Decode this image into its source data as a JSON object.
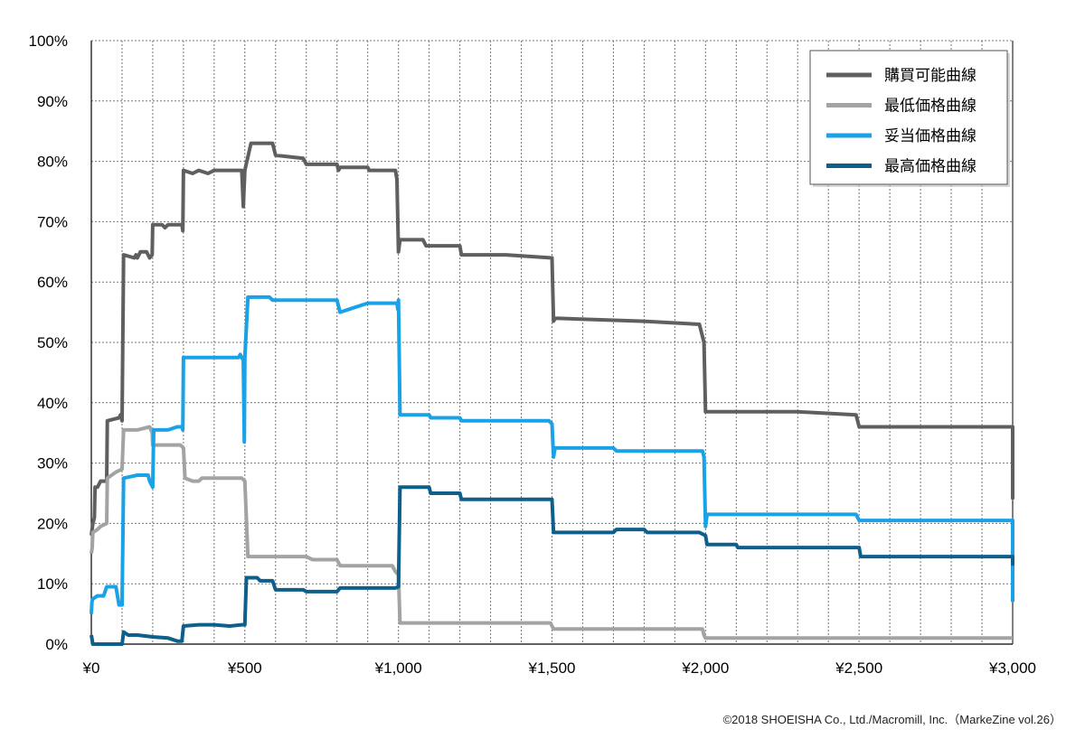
{
  "chart_data": {
    "type": "line",
    "xlim": [
      0,
      3000
    ],
    "ylim": [
      0,
      100
    ],
    "x_ticks": [
      0,
      100,
      200,
      300,
      400,
      500,
      600,
      700,
      800,
      900,
      1000,
      1100,
      1200,
      1300,
      1400,
      1500,
      1600,
      1700,
      1800,
      1900,
      2000,
      2100,
      2200,
      2300,
      2400,
      2500,
      2600,
      2700,
      2800,
      2900,
      3000
    ],
    "x_tick_labels": [
      "¥0",
      "¥500",
      "¥1,000",
      "¥1,500",
      "¥2,000",
      "¥2,500",
      "¥3,000"
    ],
    "x_tick_label_values": [
      0,
      500,
      1000,
      1500,
      2000,
      2500,
      3000
    ],
    "y_ticks": [
      0,
      10,
      20,
      30,
      40,
      50,
      60,
      70,
      80,
      90,
      100
    ],
    "y_tick_labels": [
      "0%",
      "10%",
      "20%",
      "30%",
      "40%",
      "50%",
      "60%",
      "70%",
      "80%",
      "90%",
      "100%"
    ],
    "grid": true,
    "legend_position": "top-right",
    "series": [
      {
        "name": "購買可能曲線",
        "color": "#5f5f5f",
        "points": [
          [
            0,
            18
          ],
          [
            5,
            20
          ],
          [
            10,
            21
          ],
          [
            12,
            26
          ],
          [
            20,
            26
          ],
          [
            30,
            27
          ],
          [
            50,
            27
          ],
          [
            52,
            37
          ],
          [
            90,
            37.5
          ],
          [
            95,
            38
          ],
          [
            100,
            37
          ],
          [
            105,
            64.5
          ],
          [
            140,
            64
          ],
          [
            145,
            64.5
          ],
          [
            150,
            64
          ],
          [
            160,
            65
          ],
          [
            180,
            65
          ],
          [
            190,
            64
          ],
          [
            198,
            64.5
          ],
          [
            200,
            69.5
          ],
          [
            230,
            69.5
          ],
          [
            240,
            69
          ],
          [
            250,
            69.5
          ],
          [
            295,
            69.5
          ],
          [
            298,
            68.5
          ],
          [
            300,
            78.5
          ],
          [
            330,
            78
          ],
          [
            350,
            78.5
          ],
          [
            380,
            78
          ],
          [
            400,
            78.5
          ],
          [
            450,
            78.5
          ],
          [
            490,
            78.5
          ],
          [
            495,
            72.5
          ],
          [
            500,
            78.5
          ],
          [
            520,
            83
          ],
          [
            590,
            83
          ],
          [
            600,
            81
          ],
          [
            690,
            80.5
          ],
          [
            700,
            79.5
          ],
          [
            800,
            79.5
          ],
          [
            805,
            78.5
          ],
          [
            810,
            79
          ],
          [
            900,
            79
          ],
          [
            905,
            78.5
          ],
          [
            990,
            78.5
          ],
          [
            995,
            77
          ],
          [
            1000,
            65
          ],
          [
            1005,
            67
          ],
          [
            1080,
            67
          ],
          [
            1090,
            66
          ],
          [
            1200,
            66
          ],
          [
            1205,
            64.5
          ],
          [
            1350,
            64.5
          ],
          [
            1500,
            64
          ],
          [
            1505,
            53.5
          ],
          [
            1510,
            54
          ],
          [
            1800,
            53.5
          ],
          [
            1980,
            53
          ],
          [
            1995,
            50
          ],
          [
            2000,
            38.5
          ],
          [
            2300,
            38.5
          ],
          [
            2490,
            38
          ],
          [
            2500,
            36
          ],
          [
            2990,
            36
          ],
          [
            3000,
            36
          ],
          [
            3000,
            24
          ]
        ]
      },
      {
        "name": "最低価格曲線",
        "color": "#a3a3a3",
        "points": [
          [
            0,
            15
          ],
          [
            3,
            16
          ],
          [
            5,
            18.5
          ],
          [
            20,
            19
          ],
          [
            30,
            19.5
          ],
          [
            50,
            20
          ],
          [
            52,
            27.5
          ],
          [
            80,
            28.5
          ],
          [
            100,
            29
          ],
          [
            105,
            35.5
          ],
          [
            150,
            35.5
          ],
          [
            190,
            36
          ],
          [
            198,
            35
          ],
          [
            200,
            33
          ],
          [
            290,
            33
          ],
          [
            300,
            32.5
          ],
          [
            305,
            27.5
          ],
          [
            330,
            27
          ],
          [
            350,
            27
          ],
          [
            360,
            27.5
          ],
          [
            400,
            27.5
          ],
          [
            450,
            27.5
          ],
          [
            490,
            27.5
          ],
          [
            500,
            27
          ],
          [
            510,
            14.5
          ],
          [
            700,
            14.5
          ],
          [
            720,
            14
          ],
          [
            800,
            14
          ],
          [
            810,
            13
          ],
          [
            900,
            13
          ],
          [
            980,
            13
          ],
          [
            990,
            12
          ],
          [
            1000,
            11.5
          ],
          [
            1005,
            3.5
          ],
          [
            1300,
            3.5
          ],
          [
            1495,
            3.5
          ],
          [
            1505,
            2.5
          ],
          [
            1990,
            2.5
          ],
          [
            1995,
            1.5
          ],
          [
            2000,
            1
          ],
          [
            2990,
            1
          ],
          [
            3000,
            1
          ]
        ]
      },
      {
        "name": "妥当価格曲線",
        "color": "#1aa1e6",
        "points": [
          [
            0,
            5
          ],
          [
            2,
            7
          ],
          [
            5,
            7.5
          ],
          [
            20,
            8
          ],
          [
            40,
            8
          ],
          [
            50,
            9.5
          ],
          [
            80,
            9.5
          ],
          [
            90,
            6.5
          ],
          [
            100,
            6.5
          ],
          [
            105,
            27.5
          ],
          [
            150,
            28
          ],
          [
            185,
            28
          ],
          [
            190,
            27
          ],
          [
            200,
            26
          ],
          [
            203,
            35.5
          ],
          [
            250,
            35.5
          ],
          [
            280,
            36
          ],
          [
            295,
            36
          ],
          [
            298,
            35.5
          ],
          [
            300,
            47.5
          ],
          [
            350,
            47.5
          ],
          [
            400,
            47.5
          ],
          [
            480,
            47.5
          ],
          [
            485,
            48
          ],
          [
            495,
            47
          ],
          [
            498,
            33.5
          ],
          [
            500,
            47.5
          ],
          [
            510,
            57.5
          ],
          [
            580,
            57.5
          ],
          [
            590,
            57
          ],
          [
            700,
            57
          ],
          [
            800,
            57
          ],
          [
            810,
            55
          ],
          [
            900,
            56.5
          ],
          [
            995,
            56.5
          ],
          [
            998,
            55.5
          ],
          [
            1000,
            57
          ],
          [
            1005,
            38
          ],
          [
            1100,
            38
          ],
          [
            1105,
            37.5
          ],
          [
            1200,
            37.5
          ],
          [
            1205,
            37
          ],
          [
            1490,
            37
          ],
          [
            1500,
            36.5
          ],
          [
            1505,
            31
          ],
          [
            1510,
            32.5
          ],
          [
            1700,
            32.5
          ],
          [
            1710,
            32
          ],
          [
            1990,
            32
          ],
          [
            1995,
            31
          ],
          [
            2000,
            19.5
          ],
          [
            2005,
            21.5
          ],
          [
            2200,
            21.5
          ],
          [
            2490,
            21.5
          ],
          [
            2500,
            20.5
          ],
          [
            2990,
            20.5
          ],
          [
            3000,
            20.5
          ],
          [
            3000,
            7
          ]
        ]
      },
      {
        "name": "最高価格曲線",
        "color": "#0e5f8c",
        "points": [
          [
            0,
            1.5
          ],
          [
            5,
            0
          ],
          [
            100,
            0
          ],
          [
            105,
            2
          ],
          [
            120,
            1.5
          ],
          [
            150,
            1.5
          ],
          [
            200,
            1.2
          ],
          [
            250,
            1
          ],
          [
            280,
            0.5
          ],
          [
            295,
            0.5
          ],
          [
            300,
            3
          ],
          [
            350,
            3.2
          ],
          [
            400,
            3.2
          ],
          [
            450,
            3
          ],
          [
            490,
            3.2
          ],
          [
            500,
            3.2
          ],
          [
            505,
            11
          ],
          [
            540,
            11
          ],
          [
            550,
            10.5
          ],
          [
            590,
            10.5
          ],
          [
            600,
            9
          ],
          [
            690,
            9
          ],
          [
            700,
            8.7
          ],
          [
            800,
            8.7
          ],
          [
            810,
            9.3
          ],
          [
            900,
            9.3
          ],
          [
            990,
            9.3
          ],
          [
            1000,
            9.5
          ],
          [
            1005,
            26
          ],
          [
            1080,
            26
          ],
          [
            1100,
            26
          ],
          [
            1105,
            25
          ],
          [
            1200,
            25
          ],
          [
            1205,
            24
          ],
          [
            1450,
            24
          ],
          [
            1500,
            24
          ],
          [
            1505,
            18.5
          ],
          [
            1600,
            18.5
          ],
          [
            1700,
            18.5
          ],
          [
            1710,
            19
          ],
          [
            1800,
            19
          ],
          [
            1810,
            18.5
          ],
          [
            1980,
            18.5
          ],
          [
            2000,
            18
          ],
          [
            2005,
            16.5
          ],
          [
            2100,
            16.5
          ],
          [
            2105,
            16
          ],
          [
            2480,
            16
          ],
          [
            2500,
            16
          ],
          [
            2505,
            14.5
          ],
          [
            2990,
            14.5
          ],
          [
            3000,
            14.5
          ],
          [
            3000,
            13
          ]
        ]
      }
    ]
  },
  "credit": "©2018 SHOEISHA Co., Ltd./Macromill, Inc.（MarkeZine vol.26）"
}
